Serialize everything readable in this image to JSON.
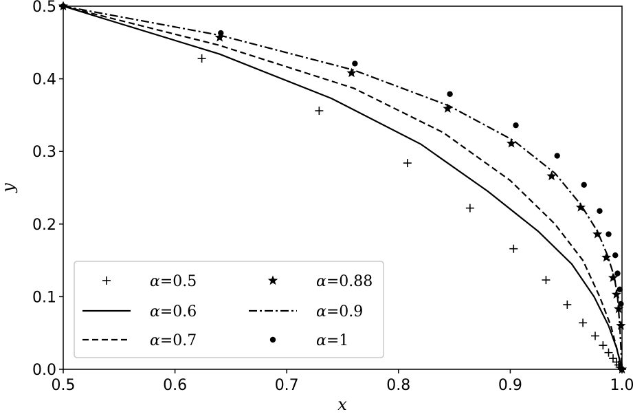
{
  "chart_data": {
    "type": "line",
    "xlabel": "x",
    "ylabel": "y",
    "xlim": [
      0.5,
      1.0
    ],
    "ylim": [
      0.0,
      0.5
    ],
    "xticks": [
      "0.5",
      "0.6",
      "0.7",
      "0.8",
      "0.9",
      "1.0"
    ],
    "yticks": [
      "0.0",
      "0.1",
      "0.2",
      "0.3",
      "0.4",
      "0.5"
    ],
    "grid": false,
    "legend_position": "bottom-left",
    "series": [
      {
        "name": "α=0.5",
        "style": "plus",
        "color": "#000000",
        "points": [
          [
            0.5,
            0.5
          ],
          [
            0.624,
            0.428
          ],
          [
            0.729,
            0.356
          ],
          [
            0.808,
            0.284
          ],
          [
            0.864,
            0.222
          ],
          [
            0.903,
            0.166
          ],
          [
            0.932,
            0.123
          ],
          [
            0.951,
            0.089
          ],
          [
            0.965,
            0.064
          ],
          [
            0.976,
            0.046
          ],
          [
            0.983,
            0.033
          ],
          [
            0.988,
            0.023
          ],
          [
            0.992,
            0.015
          ],
          [
            0.995,
            0.01
          ],
          [
            0.997,
            0.006
          ],
          [
            0.998,
            0.003
          ],
          [
            1.0,
            0.0
          ]
        ]
      },
      {
        "name": "α=0.6",
        "style": "solid",
        "color": "#000000",
        "points": [
          [
            0.5,
            0.5
          ],
          [
            0.64,
            0.434
          ],
          [
            0.74,
            0.373
          ],
          [
            0.82,
            0.31
          ],
          [
            0.88,
            0.245
          ],
          [
            0.925,
            0.19
          ],
          [
            0.955,
            0.145
          ],
          [
            0.975,
            0.1
          ],
          [
            0.988,
            0.06
          ],
          [
            0.995,
            0.03
          ],
          [
            1.0,
            0.0
          ]
        ]
      },
      {
        "name": "α=0.7",
        "style": "dashed",
        "color": "#000000",
        "points": [
          [
            0.5,
            0.5
          ],
          [
            0.64,
            0.446
          ],
          [
            0.76,
            0.387
          ],
          [
            0.84,
            0.326
          ],
          [
            0.9,
            0.26
          ],
          [
            0.94,
            0.2
          ],
          [
            0.965,
            0.15
          ],
          [
            0.98,
            0.1
          ],
          [
            0.99,
            0.06
          ],
          [
            0.996,
            0.025
          ],
          [
            1.0,
            0.0
          ]
        ]
      },
      {
        "name": "α=0.88",
        "style": "star",
        "color": "#000000",
        "points": [
          [
            0.5,
            0.5
          ],
          [
            0.64,
            0.457
          ],
          [
            0.758,
            0.408
          ],
          [
            0.844,
            0.359
          ],
          [
            0.901,
            0.311
          ],
          [
            0.937,
            0.266
          ],
          [
            0.963,
            0.223
          ],
          [
            0.978,
            0.186
          ],
          [
            0.986,
            0.154
          ],
          [
            0.992,
            0.126
          ],
          [
            0.995,
            0.103
          ],
          [
            0.997,
            0.083
          ],
          [
            0.999,
            0.06
          ],
          [
            1.0,
            0.0
          ]
        ]
      },
      {
        "name": "α=0.9",
        "style": "dashdot",
        "color": "#000000",
        "points": [
          [
            0.5,
            0.5
          ],
          [
            0.64,
            0.46
          ],
          [
            0.76,
            0.412
          ],
          [
            0.845,
            0.363
          ],
          [
            0.903,
            0.315
          ],
          [
            0.94,
            0.27
          ],
          [
            0.963,
            0.227
          ],
          [
            0.978,
            0.19
          ],
          [
            0.987,
            0.157
          ],
          [
            0.993,
            0.128
          ],
          [
            0.996,
            0.1
          ],
          [
            0.998,
            0.06
          ],
          [
            1.0,
            0.0
          ]
        ]
      },
      {
        "name": "α=1",
        "style": "dot",
        "color": "#000000",
        "points": [
          [
            0.5,
            0.5
          ],
          [
            0.641,
            0.463
          ],
          [
            0.761,
            0.421
          ],
          [
            0.846,
            0.379
          ],
          [
            0.905,
            0.336
          ],
          [
            0.942,
            0.294
          ],
          [
            0.966,
            0.254
          ],
          [
            0.98,
            0.218
          ],
          [
            0.988,
            0.186
          ],
          [
            0.994,
            0.157
          ],
          [
            0.996,
            0.132
          ],
          [
            0.998,
            0.11
          ],
          [
            0.999,
            0.09
          ]
        ]
      }
    ]
  }
}
